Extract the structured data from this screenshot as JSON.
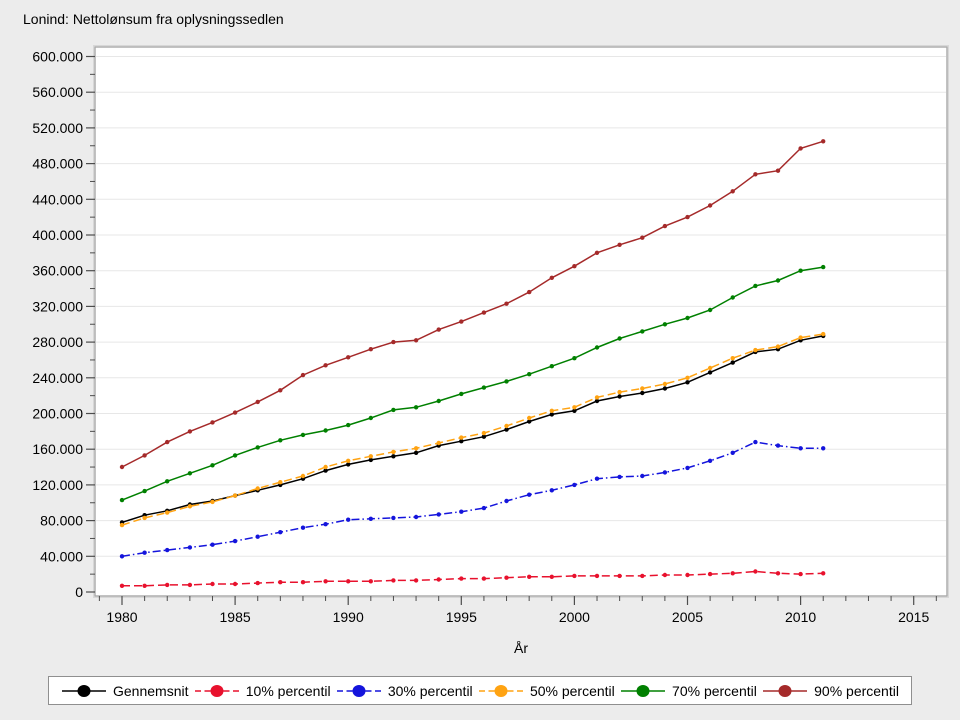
{
  "chart_data": {
    "type": "line",
    "title": "Lonind: Nettolønsum fra oplysningssedlen",
    "xlabel": "År",
    "ylabel": "",
    "grid": "horizontal-major",
    "legend_position": "bottom",
    "xlim": [
      1978.8,
      2016.5
    ],
    "ylim": [
      0,
      600000
    ],
    "x_major_ticks": [
      1980,
      1985,
      1990,
      1995,
      2000,
      2005,
      2010,
      2015
    ],
    "x_minor_tick_step": 1,
    "y_ticks": {
      "values": [
        600000,
        560000,
        520000,
        480000,
        440000,
        400000,
        360000,
        320000,
        280000,
        240000,
        200000,
        160000,
        120000,
        80000,
        40000,
        0
      ],
      "labels": [
        "600.000",
        "560.000",
        "520.000",
        "480.000",
        "440.000",
        "400.000",
        "360.000",
        "320.000",
        "280.000",
        "240.000",
        "200.000",
        "160.000",
        "120.000",
        "80.000",
        "40.000",
        "0"
      ],
      "minor_step": 20000
    },
    "x": [
      1980,
      1981,
      1982,
      1983,
      1984,
      1985,
      1986,
      1987,
      1988,
      1989,
      1990,
      1991,
      1992,
      1993,
      1994,
      1995,
      1996,
      1997,
      1998,
      1999,
      2000,
      2001,
      2002,
      2003,
      2004,
      2005,
      2006,
      2007,
      2008,
      2009,
      2010,
      2011
    ],
    "series": [
      {
        "name": "Gennemsnit",
        "color": "#000000",
        "line": "solid",
        "values": [
          78000,
          86000,
          91000,
          98000,
          102000,
          108000,
          114000,
          120000,
          127000,
          136000,
          143000,
          148000,
          152000,
          156000,
          164000,
          169000,
          174000,
          182000,
          191000,
          199000,
          203000,
          214000,
          219000,
          223000,
          228000,
          235000,
          246000,
          257000,
          269000,
          272000,
          282000,
          287000
        ]
      },
      {
        "name": "10% percentil",
        "color": "#E8112D",
        "line": "dash",
        "values": [
          7000,
          7000,
          8000,
          8000,
          9000,
          9000,
          10000,
          11000,
          11000,
          12000,
          12000,
          12000,
          13000,
          13000,
          14000,
          15000,
          15000,
          16000,
          17000,
          17000,
          18000,
          18000,
          18000,
          18000,
          19000,
          19000,
          20000,
          21000,
          23000,
          21000,
          20000,
          21000
        ]
      },
      {
        "name": "30% percentil",
        "color": "#1414DC",
        "line": "dashdot",
        "values": [
          40000,
          44000,
          47000,
          50000,
          53000,
          57000,
          62000,
          67000,
          72000,
          76000,
          81000,
          82000,
          83000,
          84000,
          87000,
          90000,
          94000,
          102000,
          109000,
          114000,
          120000,
          127000,
          129000,
          130000,
          134000,
          139000,
          147000,
          156000,
          168000,
          164000,
          161000,
          161000
        ]
      },
      {
        "name": "50% percentil",
        "color": "#FFA312",
        "line": "dash",
        "values": [
          75000,
          83000,
          89000,
          96000,
          101000,
          108000,
          116000,
          123000,
          130000,
          140000,
          147000,
          152000,
          157000,
          161000,
          167000,
          173000,
          178000,
          186000,
          195000,
          203000,
          207000,
          218000,
          224000,
          228000,
          233000,
          240000,
          251000,
          262000,
          271000,
          275000,
          285000,
          289000
        ]
      },
      {
        "name": "70% percentil",
        "color": "#008000",
        "line": "solid",
        "values": [
          103000,
          113000,
          124000,
          133000,
          142000,
          153000,
          162000,
          170000,
          176000,
          181000,
          187000,
          195000,
          204000,
          207000,
          214000,
          222000,
          229000,
          236000,
          244000,
          253000,
          262000,
          274000,
          284000,
          292000,
          300000,
          307000,
          316000,
          330000,
          343000,
          349000,
          360000,
          364000
        ]
      },
      {
        "name": "90% percentil",
        "color": "#A52A2A",
        "line": "solid",
        "values": [
          140000,
          153000,
          168000,
          180000,
          190000,
          201000,
          213000,
          226000,
          243000,
          254000,
          263000,
          272000,
          280000,
          282000,
          294000,
          303000,
          313000,
          323000,
          336000,
          352000,
          365000,
          380000,
          389000,
          397000,
          410000,
          420000,
          433000,
          449000,
          468000,
          472000,
          497000,
          505000
        ]
      }
    ],
    "colors": {
      "background": "#ECECEC",
      "plot_background": "#FFFFFF",
      "frame_border": "#A9A9A9",
      "gridline": "#E7E7E7",
      "tick": "#4D4D4D"
    }
  }
}
